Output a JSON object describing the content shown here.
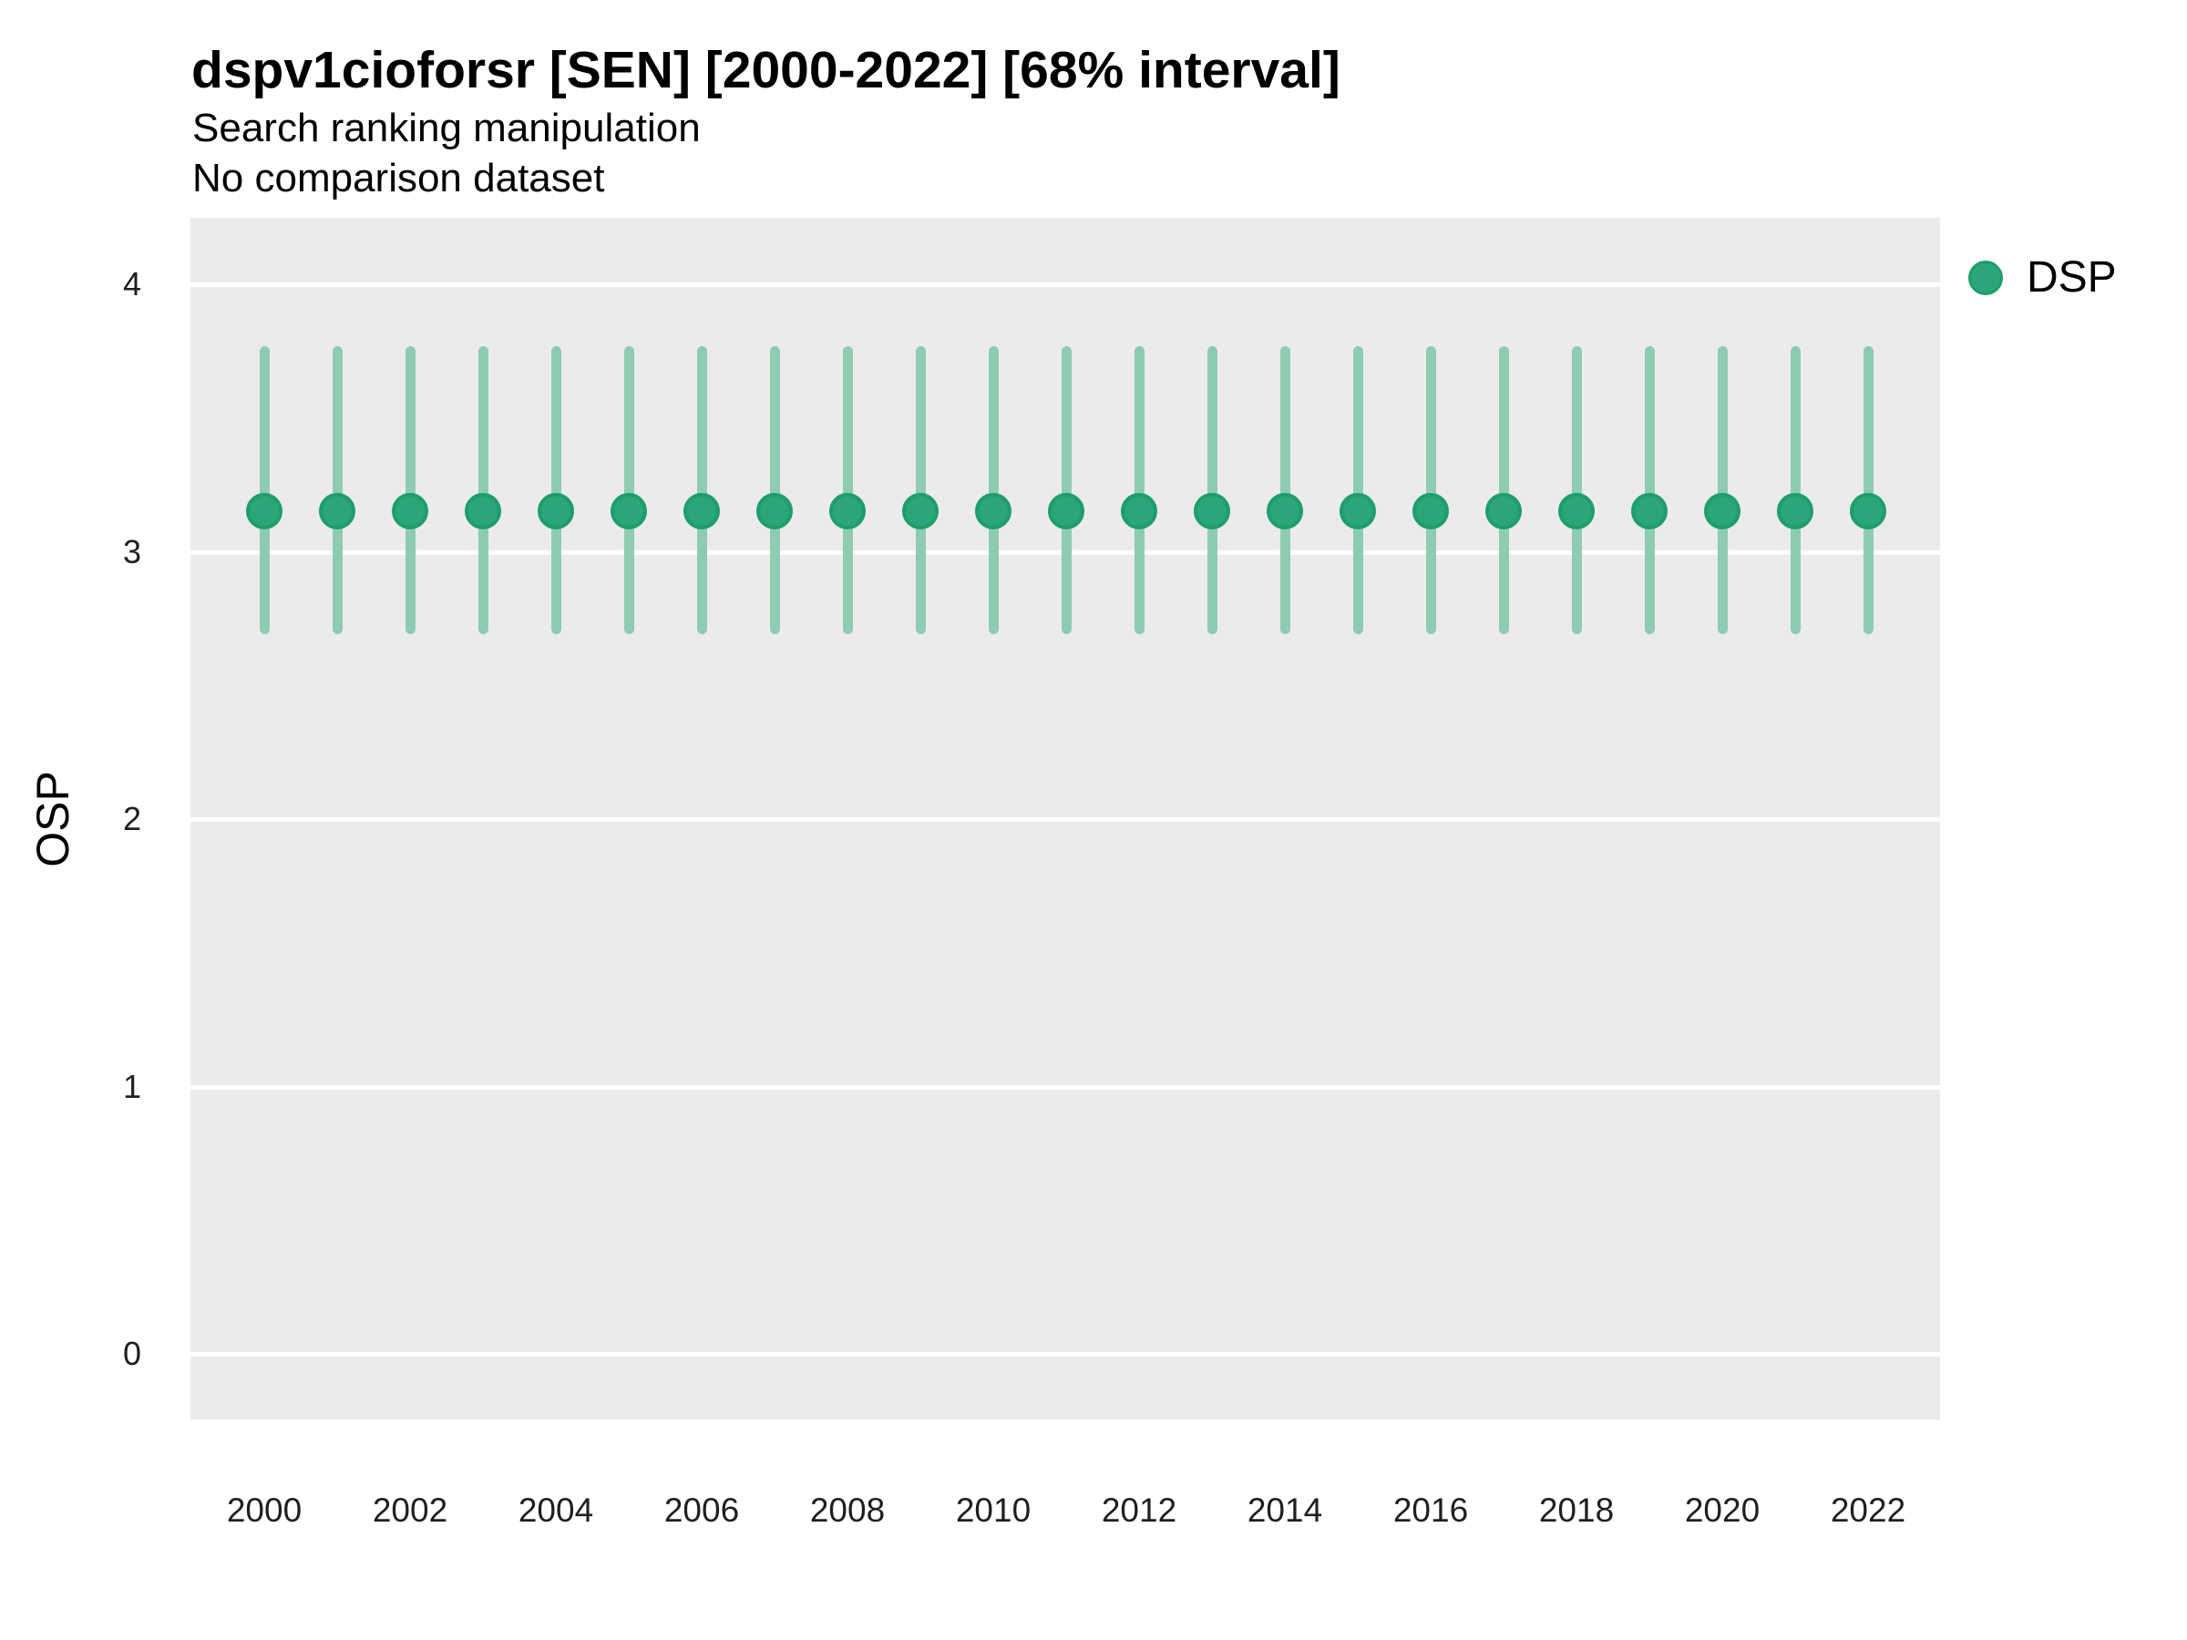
{
  "header": {
    "title": "dspv1cioforsr [SEN] [2000-2022] [68% interval]",
    "subtitle1": "Search ranking manipulation",
    "subtitle2": "No comparison dataset"
  },
  "legend": {
    "position": "right",
    "items": [
      {
        "label": "DSP",
        "color": "#2ba57a",
        "border_color": "#1d9e6b"
      }
    ]
  },
  "colors": {
    "panel_background": "#ebebeb",
    "gridline": "#ffffff",
    "point_fill": "#2ba57a",
    "point_border": "#1d9e6b",
    "errorbar": "#8ecbb3",
    "tick_text": "#1f1f1f",
    "title_text": "#000000"
  },
  "chart_data": {
    "type": "scatter",
    "title": "dspv1cioforsr [SEN] [2000-2022] [68% interval]",
    "subtitle": [
      "Search ranking manipulation",
      "No comparison dataset"
    ],
    "xlabel": "",
    "ylabel": "OSP",
    "interval_label": "68% interval",
    "grid": "horizontal-major-only",
    "legend_position": "right",
    "xlim": [
      1999,
      2023
    ],
    "ylim": [
      -0.25,
      4.25
    ],
    "y_ticks": [
      0,
      1,
      2,
      3,
      4
    ],
    "x_tick_labels": [
      2000,
      2002,
      2004,
      2006,
      2008,
      2010,
      2012,
      2014,
      2016,
      2018,
      2020,
      2022
    ],
    "series": [
      {
        "name": "DSP",
        "x": [
          2000,
          2001,
          2002,
          2003,
          2004,
          2005,
          2006,
          2007,
          2008,
          2009,
          2010,
          2011,
          2012,
          2013,
          2014,
          2015,
          2016,
          2017,
          2018,
          2019,
          2020,
          2021,
          2022
        ],
        "y": [
          3.15,
          3.15,
          3.15,
          3.15,
          3.15,
          3.15,
          3.15,
          3.15,
          3.15,
          3.15,
          3.15,
          3.15,
          3.15,
          3.15,
          3.15,
          3.15,
          3.15,
          3.15,
          3.15,
          3.15,
          3.15,
          3.15,
          3.15
        ],
        "y_low": [
          2.69,
          2.69,
          2.69,
          2.69,
          2.69,
          2.69,
          2.69,
          2.69,
          2.69,
          2.69,
          2.69,
          2.69,
          2.69,
          2.69,
          2.69,
          2.69,
          2.69,
          2.69,
          2.69,
          2.69,
          2.69,
          2.69,
          2.69
        ],
        "y_high": [
          3.77,
          3.77,
          3.77,
          3.77,
          3.77,
          3.77,
          3.77,
          3.77,
          3.77,
          3.77,
          3.77,
          3.77,
          3.77,
          3.77,
          3.77,
          3.77,
          3.77,
          3.77,
          3.77,
          3.77,
          3.77,
          3.77,
          3.77
        ]
      }
    ]
  }
}
